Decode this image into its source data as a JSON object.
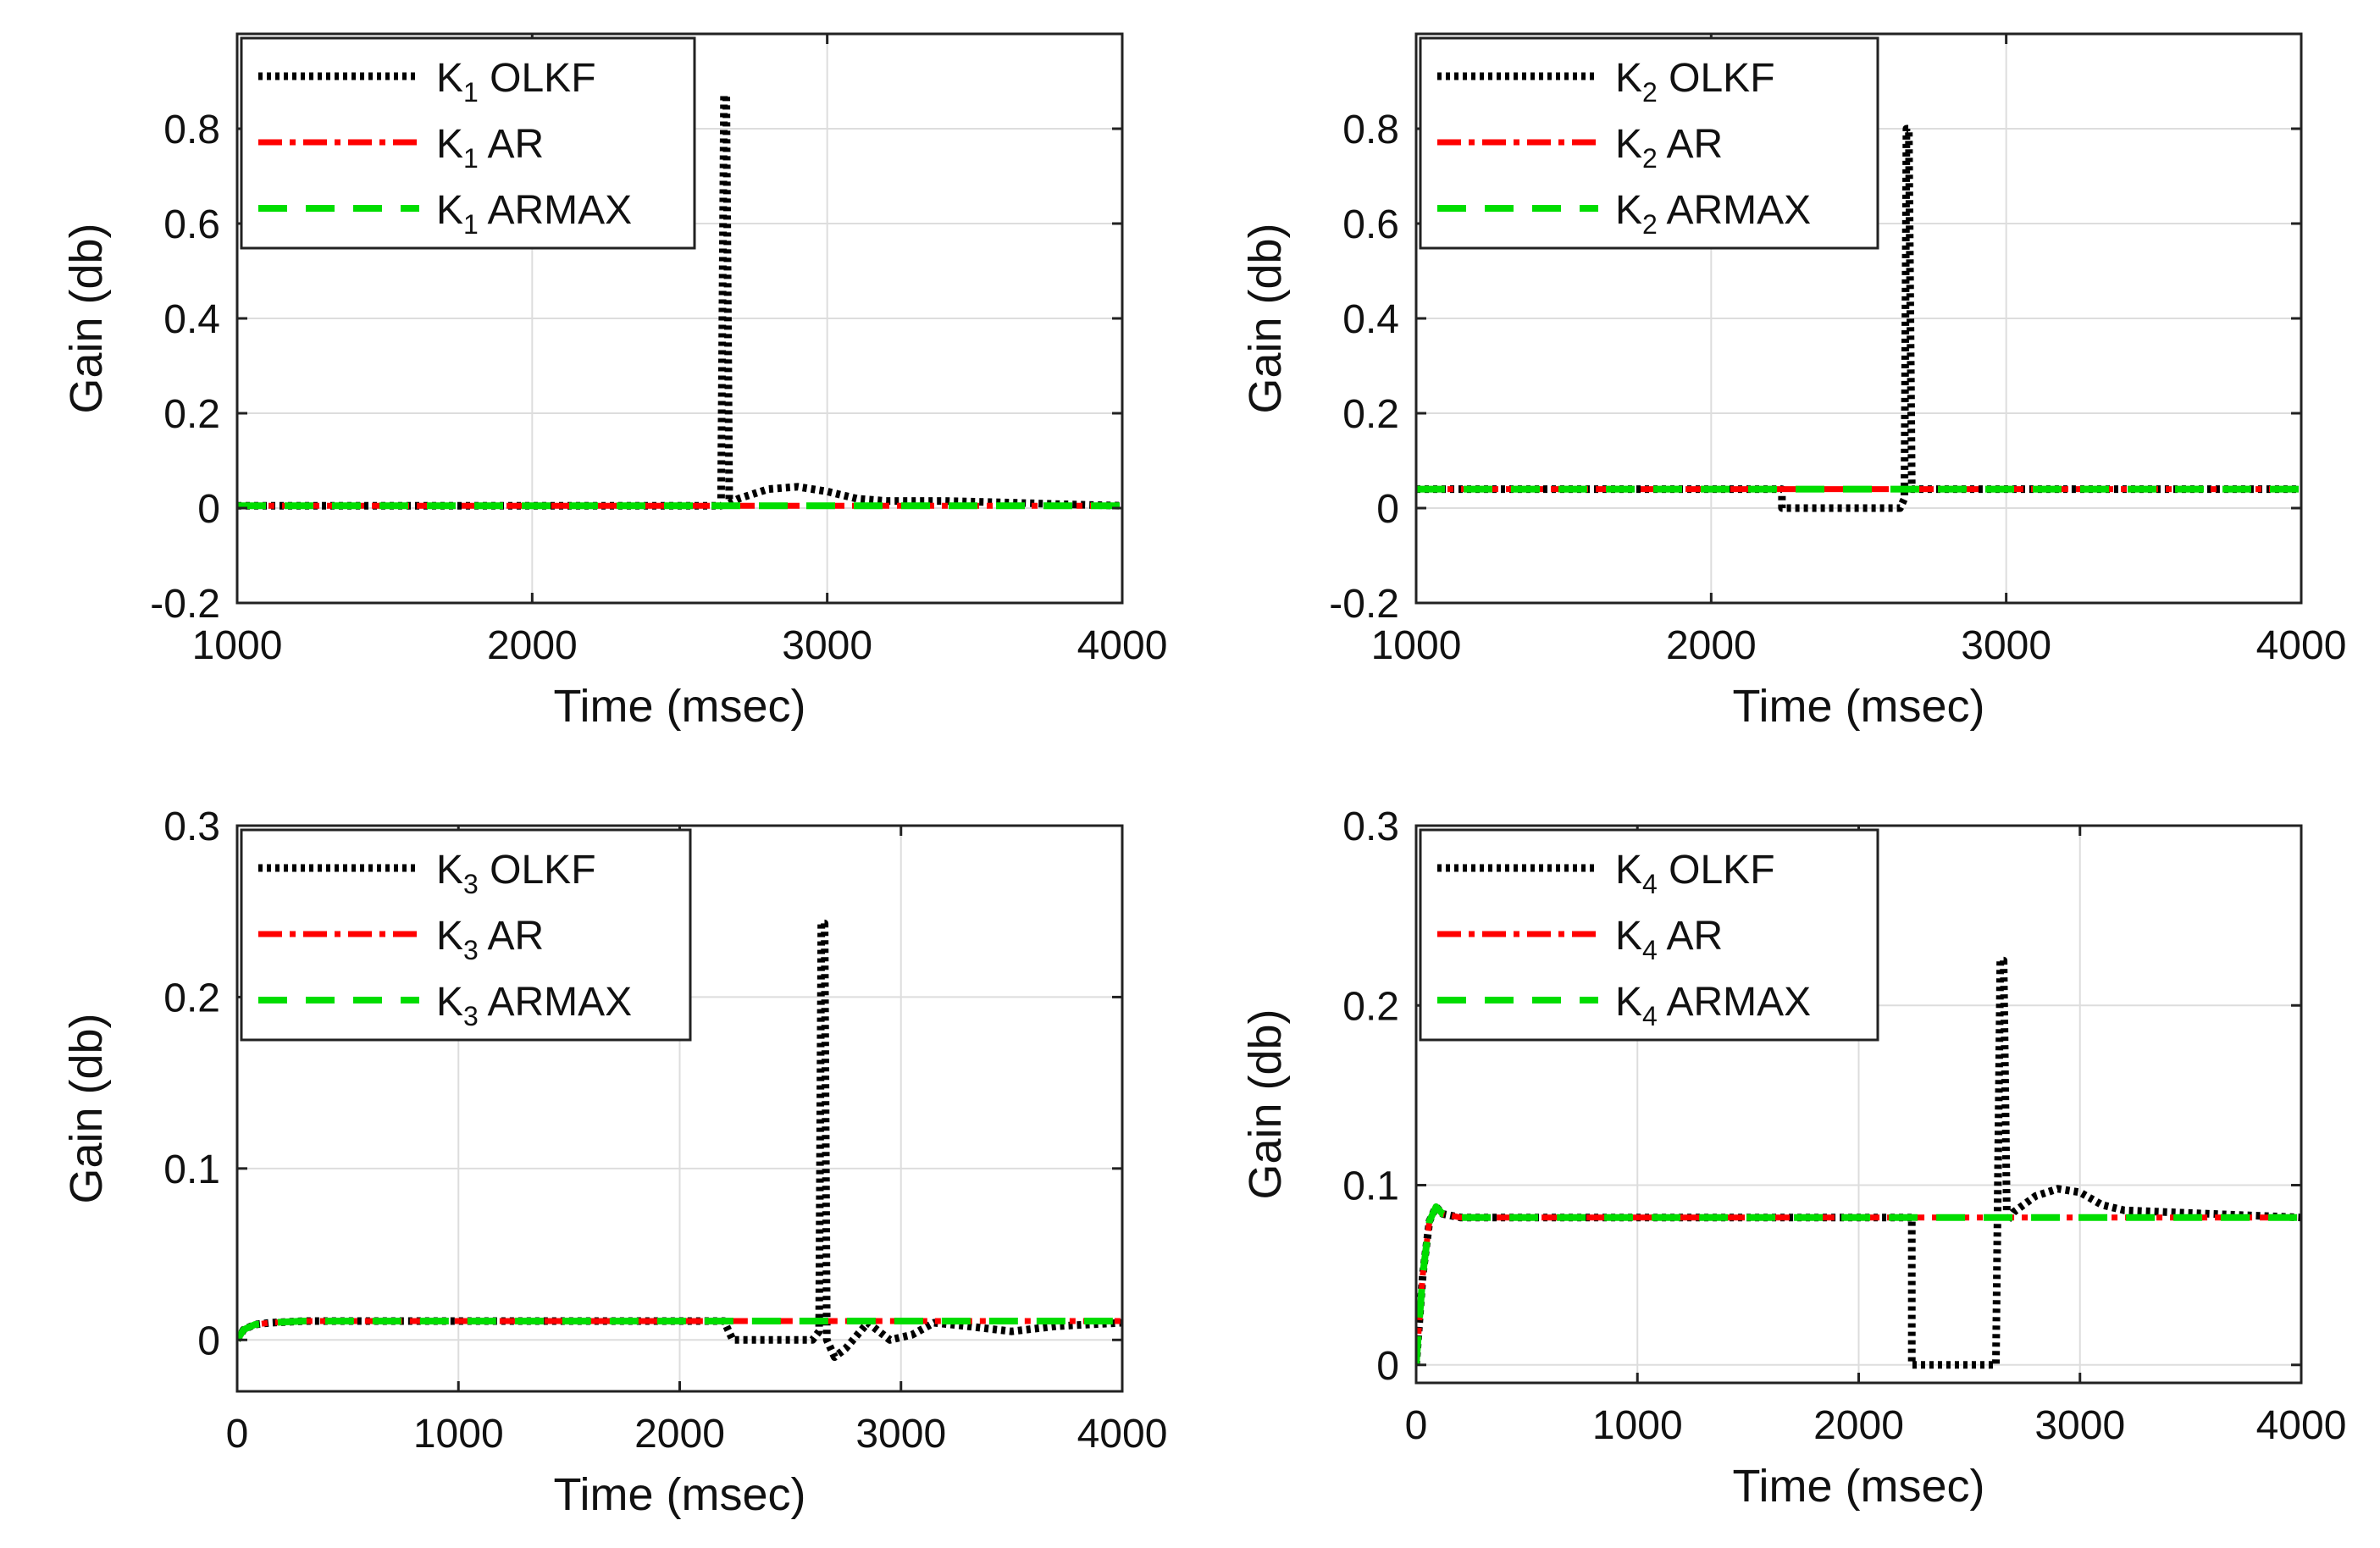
{
  "chart_data": [
    {
      "type": "line",
      "title": "",
      "xlabel": "Time (msec)",
      "ylabel": "Gain (db)",
      "xlim": [
        1000,
        4000
      ],
      "ylim": [
        -0.2,
        1.0
      ],
      "xticks": [
        1000,
        2000,
        3000,
        4000
      ],
      "yticks": [
        -0.2,
        0,
        0.2,
        0.4,
        0.6,
        0.8
      ],
      "ytick_labels": [
        "-0.2",
        "0",
        "0.2",
        "0.4",
        "0.6",
        "0.8"
      ],
      "grid": true,
      "legend": "top-left",
      "legend_labels": [
        {
          "k": "K",
          "sub": "1",
          "method": "OLKF"
        },
        {
          "k": "K",
          "sub": "1",
          "method": "AR"
        },
        {
          "k": "K",
          "sub": "1",
          "method": "ARMAX"
        }
      ],
      "series": [
        {
          "name": "K1 OLKF",
          "style": "dotted",
          "color": "#000000",
          "x": [
            1000,
            2400,
            2640,
            2650,
            2658,
            2668,
            2700,
            2800,
            2900,
            3000,
            3100,
            3200,
            3400,
            3600,
            3800,
            4000
          ],
          "y": [
            0.005,
            0.005,
            0.005,
            0.87,
            0.87,
            0.01,
            0.02,
            0.04,
            0.045,
            0.035,
            0.02,
            0.015,
            0.015,
            0.012,
            0.008,
            0.005
          ]
        },
        {
          "name": "K1 AR",
          "style": "dashdot",
          "color": "#ff0000",
          "x": [
            1000,
            4000
          ],
          "y": [
            0.005,
            0.005
          ]
        },
        {
          "name": "K1 ARMAX",
          "style": "dashed",
          "color": "#00dd00",
          "x": [
            1000,
            4000
          ],
          "y": [
            0.005,
            0.005
          ]
        }
      ]
    },
    {
      "type": "line",
      "title": "",
      "xlabel": "Time (msec)",
      "ylabel": "Gain (db)",
      "xlim": [
        1000,
        4000
      ],
      "ylim": [
        -0.2,
        1.0
      ],
      "xticks": [
        1000,
        2000,
        3000,
        4000
      ],
      "yticks": [
        -0.2,
        0,
        0.2,
        0.4,
        0.6,
        0.8
      ],
      "ytick_labels": [
        "-0.2",
        "0",
        "0.2",
        "0.4",
        "0.6",
        "0.8"
      ],
      "grid": true,
      "legend": "top-left",
      "legend_labels": [
        {
          "k": "K",
          "sub": "2",
          "method": "OLKF"
        },
        {
          "k": "K",
          "sub": "2",
          "method": "AR"
        },
        {
          "k": "K",
          "sub": "2",
          "method": "ARMAX"
        }
      ],
      "series": [
        {
          "name": "K2 OLKF",
          "style": "dotted",
          "color": "#000000",
          "x": [
            1000,
            2240,
            2240,
            2640,
            2655,
            2662,
            2670,
            2680,
            4000
          ],
          "y": [
            0.04,
            0.04,
            0.0,
            0.0,
            0.02,
            0.8,
            0.8,
            0.04,
            0.04
          ]
        },
        {
          "name": "K2 AR",
          "style": "dashdot",
          "color": "#ff0000",
          "x": [
            1000,
            4000
          ],
          "y": [
            0.04,
            0.04
          ]
        },
        {
          "name": "K2 ARMAX",
          "style": "dashed",
          "color": "#00dd00",
          "x": [
            1000,
            4000
          ],
          "y": [
            0.04,
            0.04
          ]
        }
      ]
    },
    {
      "type": "line",
      "title": "",
      "xlabel": "Time (msec)",
      "ylabel": "Gain (db)",
      "xlim": [
        0,
        4000
      ],
      "ylim": [
        -0.03,
        0.3
      ],
      "xticks": [
        0,
        1000,
        2000,
        3000,
        4000
      ],
      "yticks": [
        0,
        0.1,
        0.2,
        0.3
      ],
      "ytick_labels": [
        "0",
        "0.1",
        "0.2",
        "0.3"
      ],
      "grid": true,
      "legend": "top-left",
      "legend_labels": [
        {
          "k": "K",
          "sub": "3",
          "method": "OLKF"
        },
        {
          "k": "K",
          "sub": "3",
          "method": "AR"
        },
        {
          "k": "K",
          "sub": "3",
          "method": "ARMAX"
        }
      ],
      "series": [
        {
          "name": "K3 OLKF",
          "style": "dotted",
          "color": "#000000",
          "x": [
            0,
            30,
            80,
            150,
            300,
            2200,
            2240,
            2300,
            2600,
            2630,
            2640,
            2655,
            2665,
            2700,
            2750,
            2850,
            2950,
            3050,
            3150,
            3300,
            3500,
            3700,
            4000
          ],
          "y": [
            0.0,
            0.006,
            0.009,
            0.01,
            0.011,
            0.011,
            0.0,
            0.0,
            0.0,
            0.005,
            0.243,
            0.243,
            0.0,
            -0.01,
            -0.005,
            0.01,
            0.0,
            0.003,
            0.01,
            0.008,
            0.005,
            0.008,
            0.01
          ]
        },
        {
          "name": "K3 AR",
          "style": "dashdot",
          "color": "#ff0000",
          "x": [
            0,
            30,
            80,
            150,
            300,
            4000
          ],
          "y": [
            0.0,
            0.006,
            0.009,
            0.01,
            0.011,
            0.011
          ]
        },
        {
          "name": "K3 ARMAX",
          "style": "dashed",
          "color": "#00dd00",
          "x": [
            0,
            30,
            80,
            150,
            300,
            4000
          ],
          "y": [
            0.0,
            0.006,
            0.009,
            0.01,
            0.011,
            0.011
          ]
        }
      ]
    },
    {
      "type": "line",
      "title": "",
      "xlabel": "Time (msec)",
      "ylabel": "Gain (db)",
      "xlim": [
        0,
        4000
      ],
      "ylim": [
        -0.01,
        0.3
      ],
      "xticks": [
        0,
        1000,
        2000,
        3000,
        4000
      ],
      "yticks": [
        0,
        0.1,
        0.2,
        0.3
      ],
      "ytick_labels": [
        "0",
        "0.1",
        "0.2",
        "0.3"
      ],
      "grid": true,
      "legend": "top-left",
      "legend_labels": [
        {
          "k": "K",
          "sub": "4",
          "method": "OLKF"
        },
        {
          "k": "K",
          "sub": "4",
          "method": "AR"
        },
        {
          "k": "K",
          "sub": "4",
          "method": "ARMAX"
        }
      ],
      "series": [
        {
          "name": "K4 OLKF",
          "style": "dotted",
          "color": "#000000",
          "x": [
            0,
            30,
            60,
            90,
            120,
            200,
            2240,
            2240,
            2300,
            2600,
            2620,
            2640,
            2655,
            2670,
            2700,
            2800,
            2900,
            3000,
            3100,
            3200,
            3400,
            3600,
            3800,
            4000
          ],
          "y": [
            0.0,
            0.05,
            0.08,
            0.088,
            0.084,
            0.082,
            0.082,
            0.0,
            0.0,
            0.0,
            0.0,
            0.225,
            0.225,
            0.08,
            0.085,
            0.094,
            0.098,
            0.096,
            0.089,
            0.086,
            0.085,
            0.084,
            0.083,
            0.082
          ]
        },
        {
          "name": "K4 AR",
          "style": "dashdot",
          "color": "#ff0000",
          "x": [
            0,
            30,
            60,
            90,
            120,
            200,
            4000
          ],
          "y": [
            0.0,
            0.05,
            0.08,
            0.088,
            0.084,
            0.082,
            0.082
          ]
        },
        {
          "name": "K4 ARMAX",
          "style": "dashed",
          "color": "#00dd00",
          "x": [
            0,
            30,
            60,
            90,
            120,
            200,
            4000
          ],
          "y": [
            0.0,
            0.05,
            0.08,
            0.088,
            0.084,
            0.082,
            0.082
          ]
        }
      ]
    }
  ]
}
